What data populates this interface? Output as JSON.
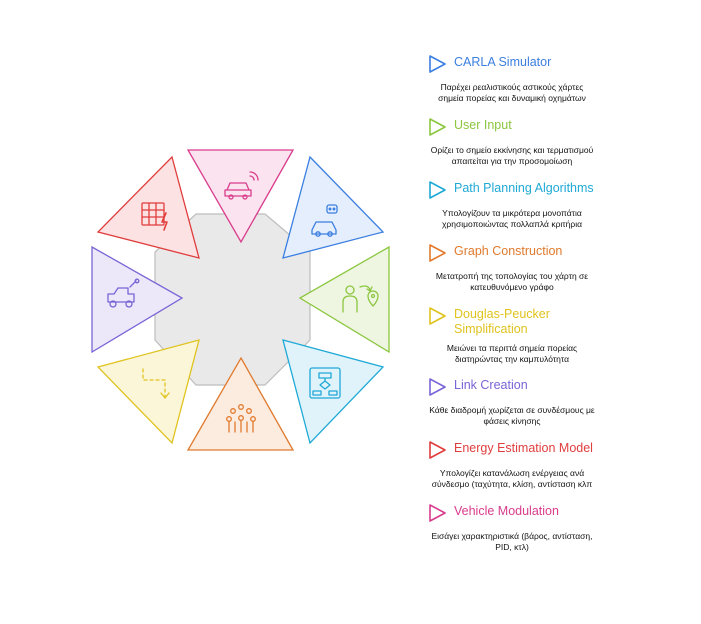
{
  "items": [
    {
      "title": "CARLA Simulator",
      "desc": [
        "Παρέχει ρεαλιστικούς αστικούς χάρτες",
        "σημεία πορείας και δυναμική οχημάτων"
      ],
      "color": "#3b7fe0",
      "icon": "car-signal-icon"
    },
    {
      "title": "User Input",
      "desc": [
        "Ορίζει το σημείο εκκίνησης και τερματισμού",
        "απαιτείται για την προσομοίωση"
      ],
      "color": "#8cc63f",
      "icon": "person-location-icon"
    },
    {
      "title": "Path Planning Algorithms",
      "desc": [
        "Υπολογίζουν τα μικρότερα μονοπάτια",
        "χρησιμοποιώντας πολλαπλά κριτήρια"
      ],
      "color": "#1fa9d6",
      "icon": "flowchart-icon"
    },
    {
      "title": "Graph Construction",
      "desc": [
        "Μετατροπή της τοπολογίας του χάρτη σε",
        "κατευθυνόμενο γράφο"
      ],
      "color": "#e07a2e",
      "icon": "network-people-icon"
    },
    {
      "title": "Douglas-Peucker Simplification",
      "desc": [
        "Μειώνει τα περιττά σημεία πορείας",
        "διατηρώντας την καμπυλότητα"
      ],
      "color": "#e0c31e",
      "icon": "dashed-path-arrow-icon"
    },
    {
      "title": "Link Creation",
      "desc": [
        "Κάθε διαδρομή χωρίζεται σε συνδέσμους με",
        "φάσεις κίνησης"
      ],
      "color": "#7a63d6",
      "icon": "jeep-route-icon"
    },
    {
      "title": "Energy Estimation Model",
      "desc": [
        "Υπολογίζει κατανάλωση ενέργειας ανά",
        "σύνδεσμο (ταχύτητα, κλίση, αντίσταση κλπ"
      ],
      "color": "#e03d3d",
      "icon": "grid-lightning-icon"
    },
    {
      "title": "Vehicle Modulation",
      "desc": [
        "Εισάγει χαρακτηριστικά (βάρος, αντίσταση,",
        "PID, κτλ)"
      ],
      "color": "#d93c8c",
      "icon": "car-wifi-icon"
    }
  ],
  "colors": {
    "hub_fill": "#e9e9e9",
    "hub_stroke": "#bdbdbd",
    "triangles": [
      {
        "position": "top",
        "color": "#d93c8c",
        "fill": "#fbe4ef",
        "icon": "car-wifi-icon"
      },
      {
        "position": "top-right",
        "color": "#3b7fe0",
        "fill": "#e4eefc",
        "icon": "robot-car-icon"
      },
      {
        "position": "right",
        "color": "#8cc63f",
        "fill": "#eef6e1",
        "icon": "person-location-icon"
      },
      {
        "position": "bottom-right",
        "color": "#1fa9d6",
        "fill": "#e0f3fb",
        "icon": "flowchart-icon"
      },
      {
        "position": "bottom",
        "color": "#e07a2e",
        "fill": "#fcebdf",
        "icon": "network-people-icon"
      },
      {
        "position": "bottom-left",
        "color": "#e0c31e",
        "fill": "#fcf6d9",
        "icon": "dashed-path-arrow-icon"
      },
      {
        "position": "left",
        "color": "#7a63d6",
        "fill": "#ece8fa",
        "icon": "jeep-route-icon"
      },
      {
        "position": "top-left",
        "color": "#e03d3d",
        "fill": "#fce2e2",
        "icon": "grid-lightning-icon"
      }
    ]
  }
}
